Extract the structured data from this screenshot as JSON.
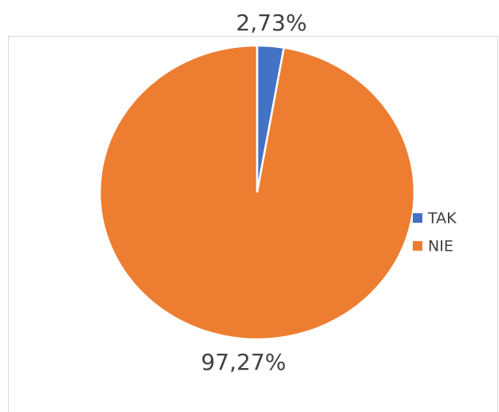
{
  "chart_data": {
    "type": "pie",
    "categories": [
      "TAK",
      "NIE"
    ],
    "values": [
      2.73,
      97.27
    ],
    "value_labels": [
      "2,73%",
      "97,27%"
    ],
    "colors": [
      "#4472c4",
      "#ed7d31"
    ],
    "legend": "right"
  }
}
